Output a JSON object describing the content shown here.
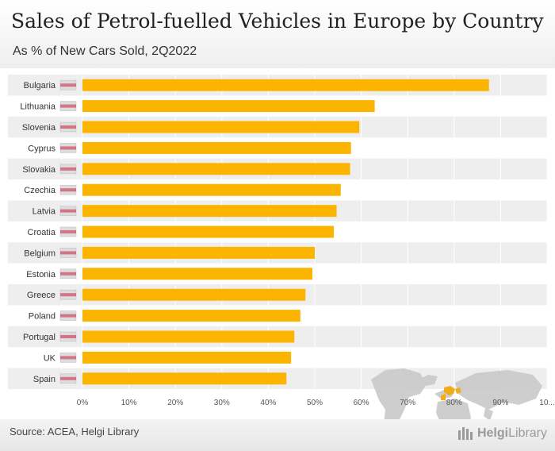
{
  "header": {
    "title": "Sales of Petrol-fuelled Vehicles in Europe by Country",
    "subtitle": "As % of New Cars Sold, 2Q2022"
  },
  "footer": {
    "source": "Source: ACEA, Helgi Library",
    "logo_brand": "Helgi",
    "logo_suffix": "Library"
  },
  "colors": {
    "bar": "#fbb400",
    "row_shade": "#eeeeee",
    "map_land": "#c9c9c9",
    "map_highlight": "#f0a500"
  },
  "icons": {
    "map": "world-map-icon",
    "logo": "helgi-library-logo-icon"
  },
  "chart_data": {
    "type": "bar",
    "orientation": "horizontal",
    "title": "Sales of Petrol-fuelled Vehicles in Europe by Country",
    "subtitle": "As % of New Cars Sold, 2Q2022",
    "categories": [
      "Bulgaria",
      "Lithuania",
      "Slovenia",
      "Cyprus",
      "Slovakia",
      "Czechia",
      "Latvia",
      "Croatia",
      "Belgium",
      "Estonia",
      "Greece",
      "Poland",
      "Portugal",
      "UK",
      "Spain"
    ],
    "values": [
      87.5,
      62.9,
      59.6,
      57.8,
      57.6,
      55.6,
      54.7,
      54.1,
      50.0,
      49.5,
      48.0,
      46.9,
      45.6,
      44.9,
      43.9
    ],
    "xlim": [
      0,
      100
    ],
    "ticks": [
      "0%",
      "10%",
      "20%",
      "30%",
      "40%",
      "50%",
      "60%",
      "70%",
      "80%",
      "90%",
      "10..."
    ],
    "grid": true,
    "legend": "none"
  }
}
